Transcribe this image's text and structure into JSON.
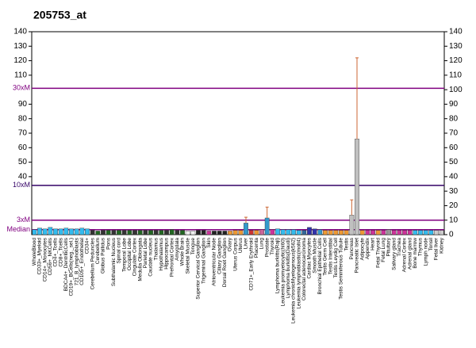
{
  "chart_data": {
    "type": "bar",
    "title": "205753_at",
    "categories": [
      "WholeBlood",
      "CD33+_Myeloid",
      "CD14+_Monocytes",
      "CD56+_NKCells",
      "CD4+_Tcells",
      "CD8+_Tcells",
      "BDCA4+_DentriticCells",
      "CD19+_BCells(neg._sel.)",
      "721_B_lymphoblasts",
      "CD105+_Endothelial",
      "CD34+",
      "Cerebellum Peduncles",
      "Cerebellum",
      "Globus Pallidus",
      "Pons",
      "Subthalamic Nucleus",
      "Spinal cord",
      "Temporal Lobe",
      "Occipital Lobe",
      "Cingulate Cortex",
      "Medulla Oblongata",
      "Parietal Lobe",
      "Caudate nucleus",
      "Thalamus",
      "Hypothalamus",
      "Hippocampus",
      "Prefrontal Cortex",
      "Amygdala",
      "Whole Brain",
      "Skeletal Muscle",
      "Tongue",
      "Superior Cervical Ganglion",
      "Trigeminal Ganglion",
      "Skin",
      "Atrioventricular Node",
      "Ciliary Ganglion",
      "Dorsal Root Ganglion",
      "Ovary",
      "Uterus Corpus",
      "Uterus",
      "Liver",
      "CD71+_Early Erythroid",
      "Placenta",
      "Lung",
      "Prostate",
      "Thyroid",
      "Lymphoma burkitts(Raji)",
      "Leukemia promyelocytic(hl60)",
      "Lymphoma burkitts(Daudi)",
      "Leukemia chronicMyelogenous(k562)",
      "Leukemia lymphoblastic(molt4)",
      "Colorectal adenocarcinoma",
      "Cardiac Myocytes",
      "Smooth Muscle",
      "Bronchial Epithelial Cells",
      "Testis Germ Cell",
      "Testis Interstitial",
      "Testis Leydig Cell",
      "Testis Seminiferous Tubule",
      "Testis",
      "Pancreas",
      "Pancreatic Islet",
      "Adipocyte",
      "Appendix",
      "Heart",
      "Fetal Thyroid",
      "Fetal Lung",
      "Pituitary",
      "Salivary gland",
      "Trachea",
      "Adrenal Cortex",
      "Adrenal gland",
      "Bone marrow",
      "Thymus",
      "Lymph node",
      "Tonsil",
      "Fetal liver",
      "Kidney"
    ],
    "values": [
      3.5,
      4.5,
      4,
      5,
      4,
      4,
      4.5,
      4,
      4,
      4.5,
      4,
      3,
      2.5,
      3,
      3,
      3,
      3,
      3,
      3,
      3,
      3,
      3,
      3,
      3,
      3,
      3,
      3.5,
      3,
      3,
      2.5,
      2.5,
      3,
      3,
      2.5,
      2.5,
      2.5,
      2.5,
      2.5,
      3,
      3,
      8,
      3,
      3,
      3.5,
      11.5,
      3.5,
      4,
      3.5,
      3.5,
      3.5,
      3,
      3,
      5,
      4,
      3.5,
      3,
      3,
      3,
      3,
      3,
      13.5,
      66,
      3,
      3,
      3,
      3,
      3,
      3.5,
      3,
      3,
      3,
      3,
      3,
      3,
      3,
      3,
      3,
      3
    ],
    "errors": [
      null,
      null,
      null,
      null,
      null,
      null,
      null,
      null,
      null,
      null,
      null,
      null,
      null,
      null,
      null,
      null,
      null,
      null,
      null,
      null,
      null,
      null,
      null,
      null,
      null,
      null,
      null,
      null,
      null,
      null,
      null,
      null,
      null,
      null,
      null,
      null,
      null,
      null,
      null,
      null,
      4,
      null,
      null,
      null,
      7.5,
      null,
      null,
      null,
      null,
      null,
      null,
      null,
      null,
      null,
      null,
      null,
      null,
      null,
      null,
      null,
      10.5,
      56,
      null,
      null,
      null,
      null,
      null,
      null,
      null,
      null,
      null,
      null,
      null,
      null,
      null,
      null,
      null,
      null
    ],
    "colors": [
      "#33bbee",
      "#33bbee",
      "#33bbee",
      "#33bbee",
      "#33bbee",
      "#33bbee",
      "#33bbee",
      "#33bbee",
      "#33bbee",
      "#33bbee",
      "#33bbee",
      "#333333",
      "#226622",
      "#333333",
      "#226622",
      "#333333",
      "#226622",
      "#333333",
      "#226622",
      "#333333",
      "#226622",
      "#333333",
      "#226622",
      "#333333",
      "#226622",
      "#333333",
      "#226622",
      "#333333",
      "#226622",
      "#eeeeee",
      "#eeeeee",
      "#222222",
      "#222222",
      "#cc3399",
      "#222222",
      "#222222",
      "#222222",
      "#ee9933",
      "#ee9933",
      "#ee9933",
      "#3399cc",
      "#cc3333",
      "#ee9933",
      "#cc6699",
      "#3399cc",
      "#cc3399",
      "#33bbee",
      "#33bbee",
      "#33bbee",
      "#33bbee",
      "#33bbee",
      "#336699",
      "#3333aa",
      "#3333aa",
      "#3399cc",
      "#ee9933",
      "#ee9933",
      "#ee9933",
      "#ee9933",
      "#ee9933",
      "#c0c0c0",
      "#c0c0c0",
      "#ee9933",
      "#cc3399",
      "#cc3399",
      "#ee9933",
      "#cc3399",
      "#999999",
      "#cc3399",
      "#cc3399",
      "#cc3399",
      "#cc3399",
      "#33bbee",
      "#33bbee",
      "#33bbee",
      "#33bbee",
      "#cccccc",
      "#cccccc"
    ],
    "error_color": "#cc6633",
    "ylim": [
      0,
      140
    ],
    "yticks": [
      40,
      50,
      60,
      70,
      80,
      90,
      110,
      120,
      130,
      140
    ],
    "y2lim": [
      0,
      140
    ],
    "y2ticks": [
      0,
      10,
      20,
      30,
      40,
      50,
      60,
      70,
      80,
      90,
      100,
      110,
      120,
      130,
      140
    ],
    "reference_lines": [
      {
        "label": "30xM",
        "value": 101,
        "color": "#800080"
      },
      {
        "label": "10xM",
        "value": 34,
        "color": "#330066"
      },
      {
        "label": "3xM",
        "value": 10,
        "color": "#800080"
      },
      {
        "label": "Median",
        "value": 3.4,
        "color": "#800080"
      }
    ]
  }
}
